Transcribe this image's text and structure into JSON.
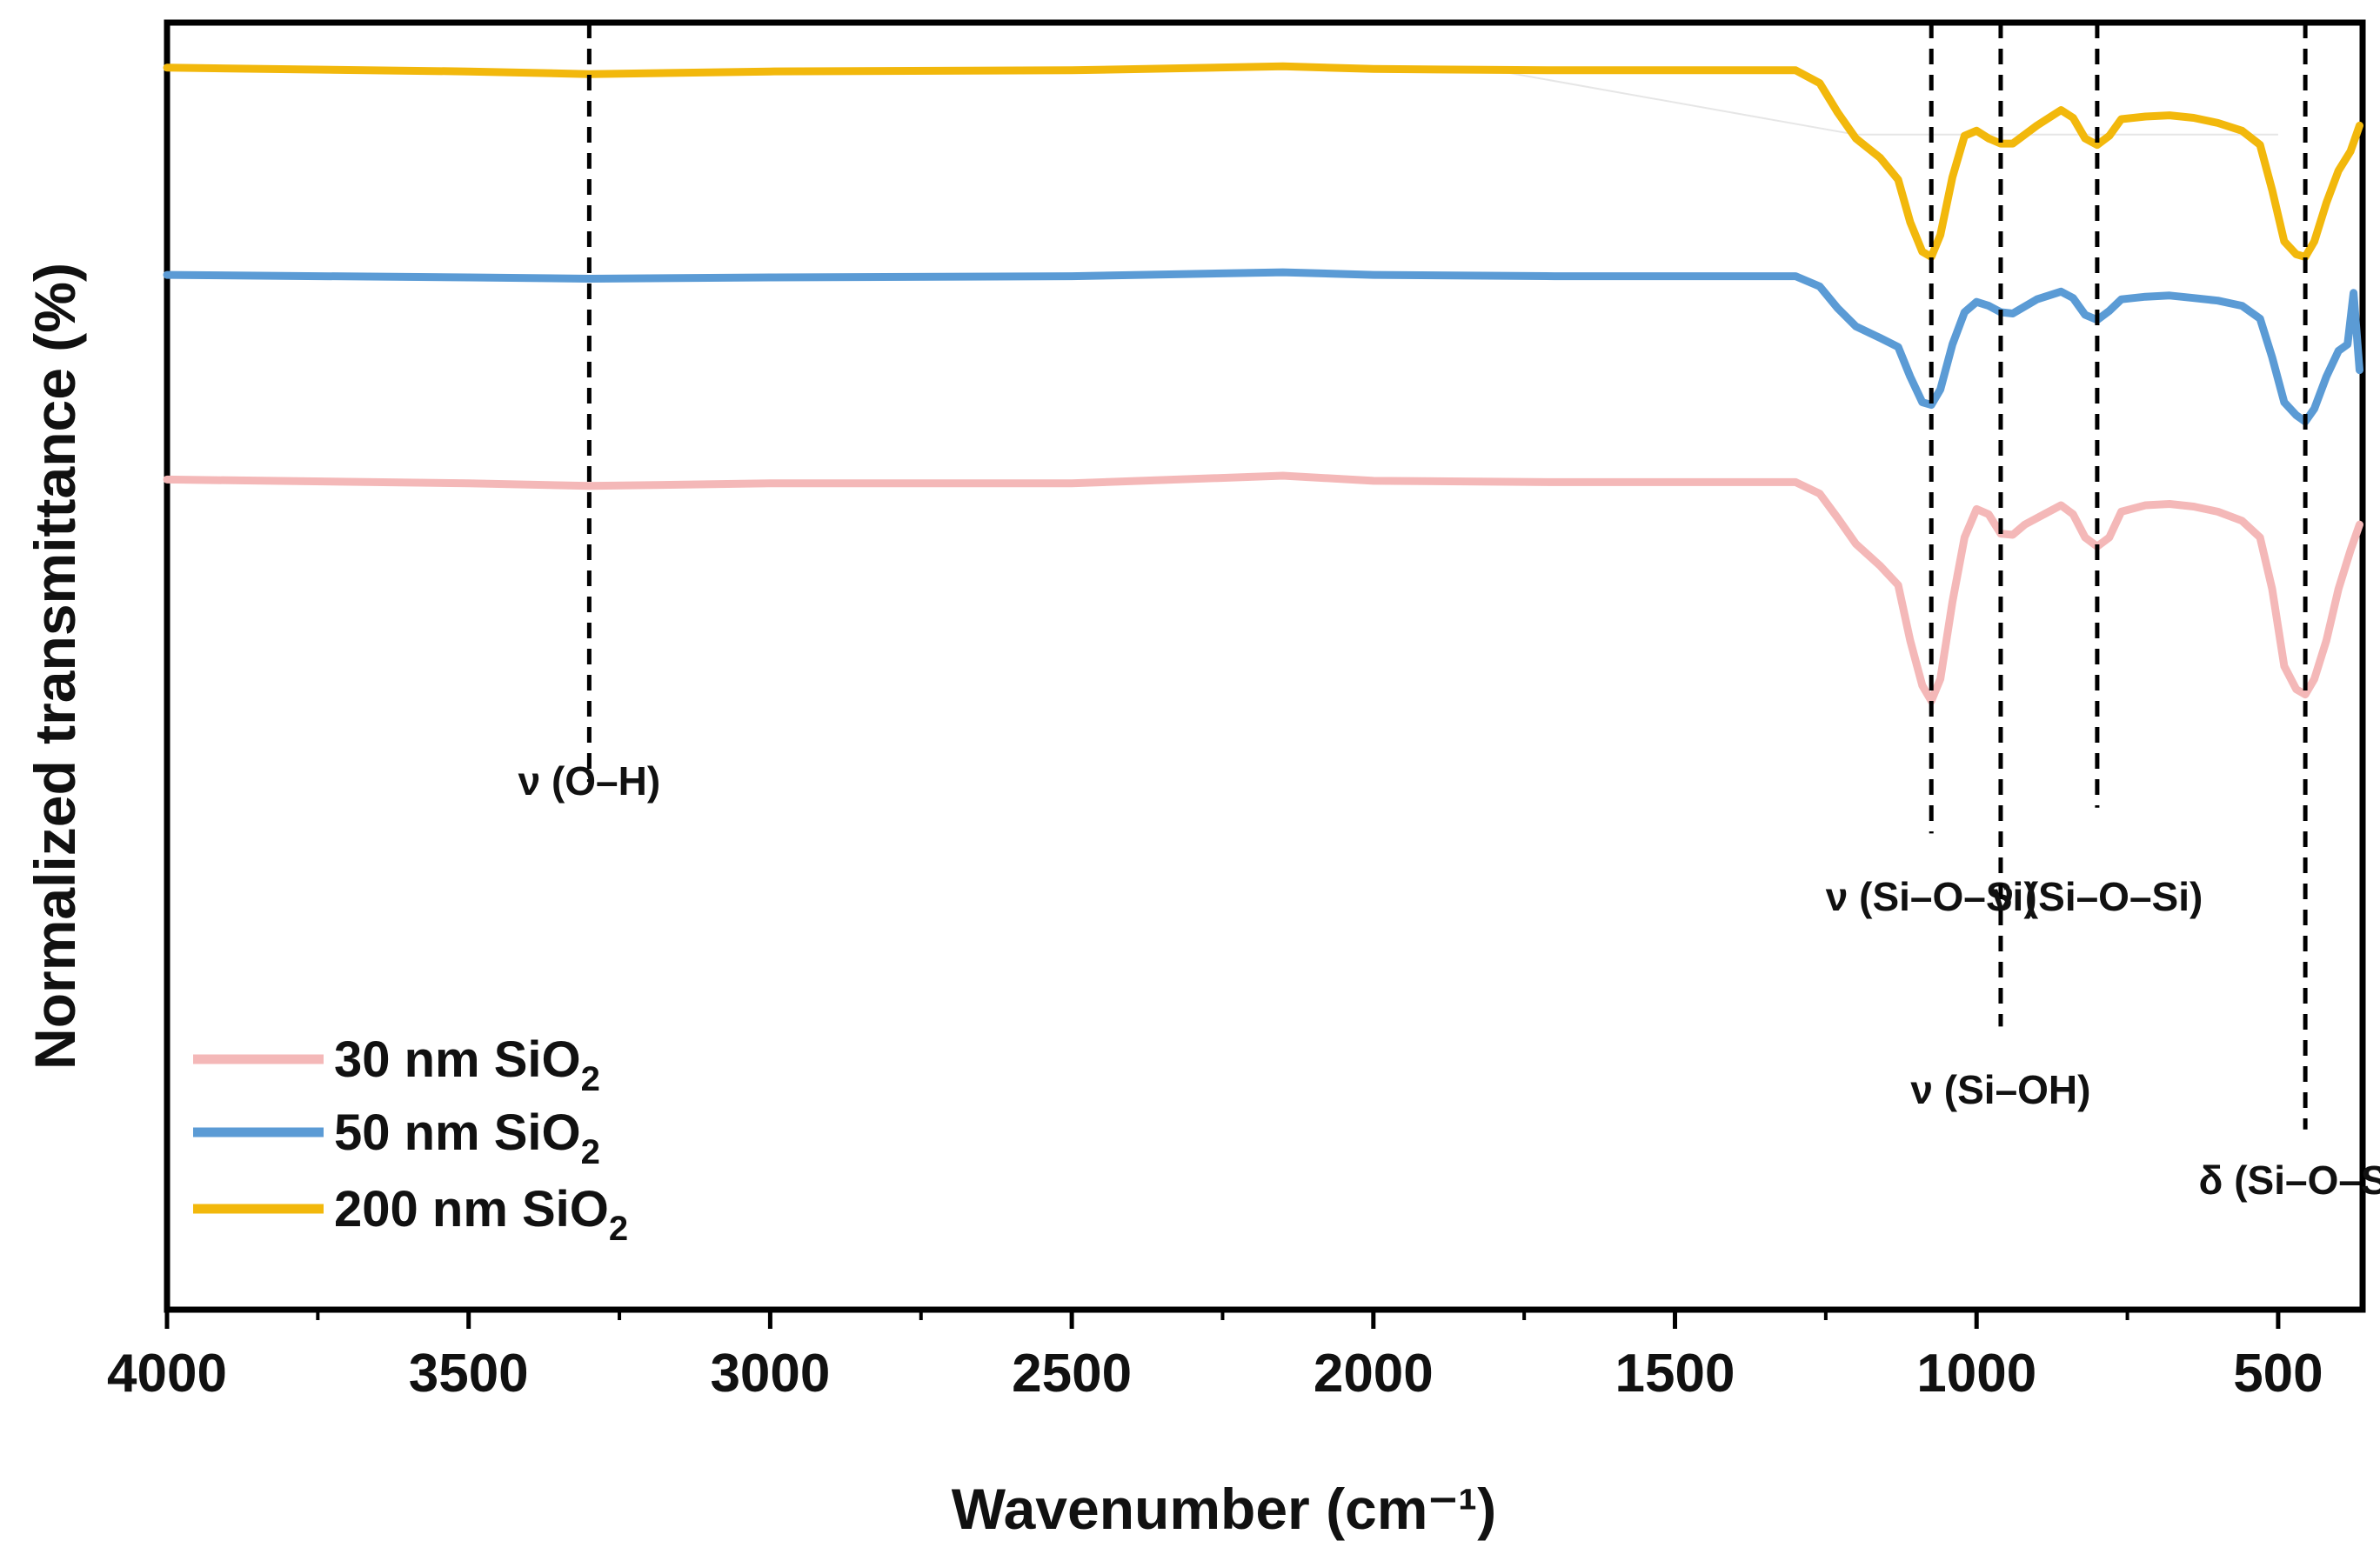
{
  "chart_data": {
    "type": "line",
    "title": "",
    "xlabel": "Wavenumber (cm⁻¹)",
    "ylabel": "Normalized transmittance (%)",
    "xlim": [
      4000,
      360
    ],
    "ylim": [
      0,
      100
    ],
    "x_ticks": [
      4000,
      3500,
      3000,
      2500,
      2000,
      1500,
      1000,
      500
    ],
    "x_tick_labels": [
      "4000",
      "3500",
      "3000",
      "2500",
      "2000",
      "1500",
      "1000",
      "500"
    ],
    "grid": false,
    "legend_position": "bottom-left",
    "series": [
      {
        "name": "30 nm SiO2",
        "label_main": "30 nm SiO",
        "label_sub": "2",
        "color": "#f4b8b8",
        "points": [
          [
            4000,
            64.5
          ],
          [
            3500,
            64.2
          ],
          [
            3300,
            64.0
          ],
          [
            3000,
            64.2
          ],
          [
            2500,
            64.2
          ],
          [
            2150,
            64.8
          ],
          [
            2000,
            64.4
          ],
          [
            1700,
            64.3
          ],
          [
            1300,
            64.3
          ],
          [
            1260,
            63.4
          ],
          [
            1230,
            61.5
          ],
          [
            1200,
            59.5
          ],
          [
            1160,
            57.8
          ],
          [
            1130,
            56.3
          ],
          [
            1110,
            52.0
          ],
          [
            1090,
            48.5
          ],
          [
            1075,
            47.3
          ],
          [
            1060,
            49.0
          ],
          [
            1040,
            55.0
          ],
          [
            1020,
            60.0
          ],
          [
            1000,
            62.2
          ],
          [
            980,
            61.8
          ],
          [
            960,
            60.3
          ],
          [
            940,
            60.2
          ],
          [
            920,
            61.0
          ],
          [
            880,
            62.0
          ],
          [
            860,
            62.5
          ],
          [
            840,
            61.8
          ],
          [
            820,
            60.0
          ],
          [
            800,
            59.3
          ],
          [
            780,
            60.0
          ],
          [
            760,
            62.0
          ],
          [
            720,
            62.5
          ],
          [
            680,
            62.6
          ],
          [
            640,
            62.4
          ],
          [
            600,
            62.0
          ],
          [
            560,
            61.3
          ],
          [
            530,
            60.0
          ],
          [
            510,
            56.0
          ],
          [
            490,
            50.0
          ],
          [
            470,
            48.2
          ],
          [
            455,
            47.8
          ],
          [
            440,
            49.0
          ],
          [
            420,
            52.0
          ],
          [
            400,
            56.0
          ],
          [
            380,
            59.0
          ],
          [
            365,
            61.0
          ]
        ]
      },
      {
        "name": "50 nm SiO2",
        "label_main": "50 nm SiO",
        "label_sub": "2",
        "color": "#5b9bd5",
        "points": [
          [
            4000,
            80.4
          ],
          [
            3500,
            80.2
          ],
          [
            3300,
            80.1
          ],
          [
            3000,
            80.2
          ],
          [
            2500,
            80.3
          ],
          [
            2150,
            80.6
          ],
          [
            2000,
            80.4
          ],
          [
            1700,
            80.3
          ],
          [
            1300,
            80.3
          ],
          [
            1260,
            79.5
          ],
          [
            1230,
            77.8
          ],
          [
            1200,
            76.4
          ],
          [
            1160,
            75.5
          ],
          [
            1130,
            74.8
          ],
          [
            1110,
            72.5
          ],
          [
            1090,
            70.5
          ],
          [
            1075,
            70.3
          ],
          [
            1060,
            71.5
          ],
          [
            1040,
            75.0
          ],
          [
            1020,
            77.5
          ],
          [
            1000,
            78.3
          ],
          [
            980,
            78.0
          ],
          [
            960,
            77.5
          ],
          [
            940,
            77.4
          ],
          [
            900,
            78.5
          ],
          [
            860,
            79.1
          ],
          [
            840,
            78.6
          ],
          [
            820,
            77.3
          ],
          [
            800,
            76.9
          ],
          [
            780,
            77.6
          ],
          [
            760,
            78.5
          ],
          [
            720,
            78.7
          ],
          [
            680,
            78.8
          ],
          [
            640,
            78.6
          ],
          [
            600,
            78.4
          ],
          [
            560,
            78.0
          ],
          [
            530,
            77.0
          ],
          [
            510,
            74.0
          ],
          [
            490,
            70.5
          ],
          [
            470,
            69.5
          ],
          [
            455,
            69.0
          ],
          [
            440,
            70.0
          ],
          [
            420,
            72.5
          ],
          [
            400,
            74.5
          ],
          [
            385,
            75.0
          ],
          [
            375,
            79.0
          ],
          [
            365,
            73.0
          ]
        ]
      },
      {
        "name": "200 nm SiO2",
        "label_main": "200 nm SiO",
        "label_sub": "2",
        "color": "#f2b80c",
        "points": [
          [
            4000,
            96.5
          ],
          [
            3500,
            96.2
          ],
          [
            3300,
            96.0
          ],
          [
            3000,
            96.2
          ],
          [
            2500,
            96.3
          ],
          [
            2150,
            96.6
          ],
          [
            2000,
            96.4
          ],
          [
            1700,
            96.3
          ],
          [
            1300,
            96.3
          ],
          [
            1260,
            95.3
          ],
          [
            1230,
            93.0
          ],
          [
            1200,
            91.0
          ],
          [
            1160,
            89.5
          ],
          [
            1130,
            87.8
          ],
          [
            1110,
            84.5
          ],
          [
            1090,
            82.2
          ],
          [
            1075,
            81.8
          ],
          [
            1060,
            83.5
          ],
          [
            1040,
            88.0
          ],
          [
            1020,
            91.2
          ],
          [
            1000,
            91.6
          ],
          [
            980,
            91.0
          ],
          [
            960,
            90.6
          ],
          [
            940,
            90.6
          ],
          [
            900,
            92.0
          ],
          [
            860,
            93.2
          ],
          [
            840,
            92.6
          ],
          [
            820,
            91.0
          ],
          [
            800,
            90.5
          ],
          [
            780,
            91.2
          ],
          [
            760,
            92.5
          ],
          [
            720,
            92.7
          ],
          [
            680,
            92.8
          ],
          [
            640,
            92.6
          ],
          [
            600,
            92.2
          ],
          [
            560,
            91.6
          ],
          [
            530,
            90.5
          ],
          [
            510,
            87.0
          ],
          [
            490,
            83.0
          ],
          [
            470,
            82.0
          ],
          [
            455,
            81.8
          ],
          [
            440,
            83.0
          ],
          [
            420,
            86.0
          ],
          [
            400,
            88.5
          ],
          [
            380,
            90.0
          ],
          [
            365,
            92.0
          ]
        ]
      }
    ],
    "baseline_200nm": [
      [
        1800,
        96.3
      ],
      [
        1200,
        91.3
      ],
      [
        500,
        91.3
      ]
    ],
    "annotations": [
      {
        "label": "ν (O–H)",
        "x": 3300,
        "y_top": 100,
        "y_bottom": 41,
        "text_y": 40,
        "anchor": "middle"
      },
      {
        "label": "ν (Si–O–Si)",
        "x": 1075,
        "y_top": 100,
        "y_bottom": 37,
        "text_y": 31,
        "anchor": "middle"
      },
      {
        "label": "ν (Si–OH)",
        "x": 960,
        "y_top": 100,
        "y_bottom": 22,
        "text_y": 16,
        "anchor": "middle"
      },
      {
        "label": "ν (Si–O–Si)",
        "x": 800,
        "y_top": 100,
        "y_bottom": 39,
        "text_y": 31,
        "anchor": "middle"
      },
      {
        "label": "δ (Si–O–Si)",
        "x": 455,
        "y_top": 100,
        "y_bottom": 14,
        "text_y": 9,
        "anchor": "middle"
      }
    ]
  }
}
